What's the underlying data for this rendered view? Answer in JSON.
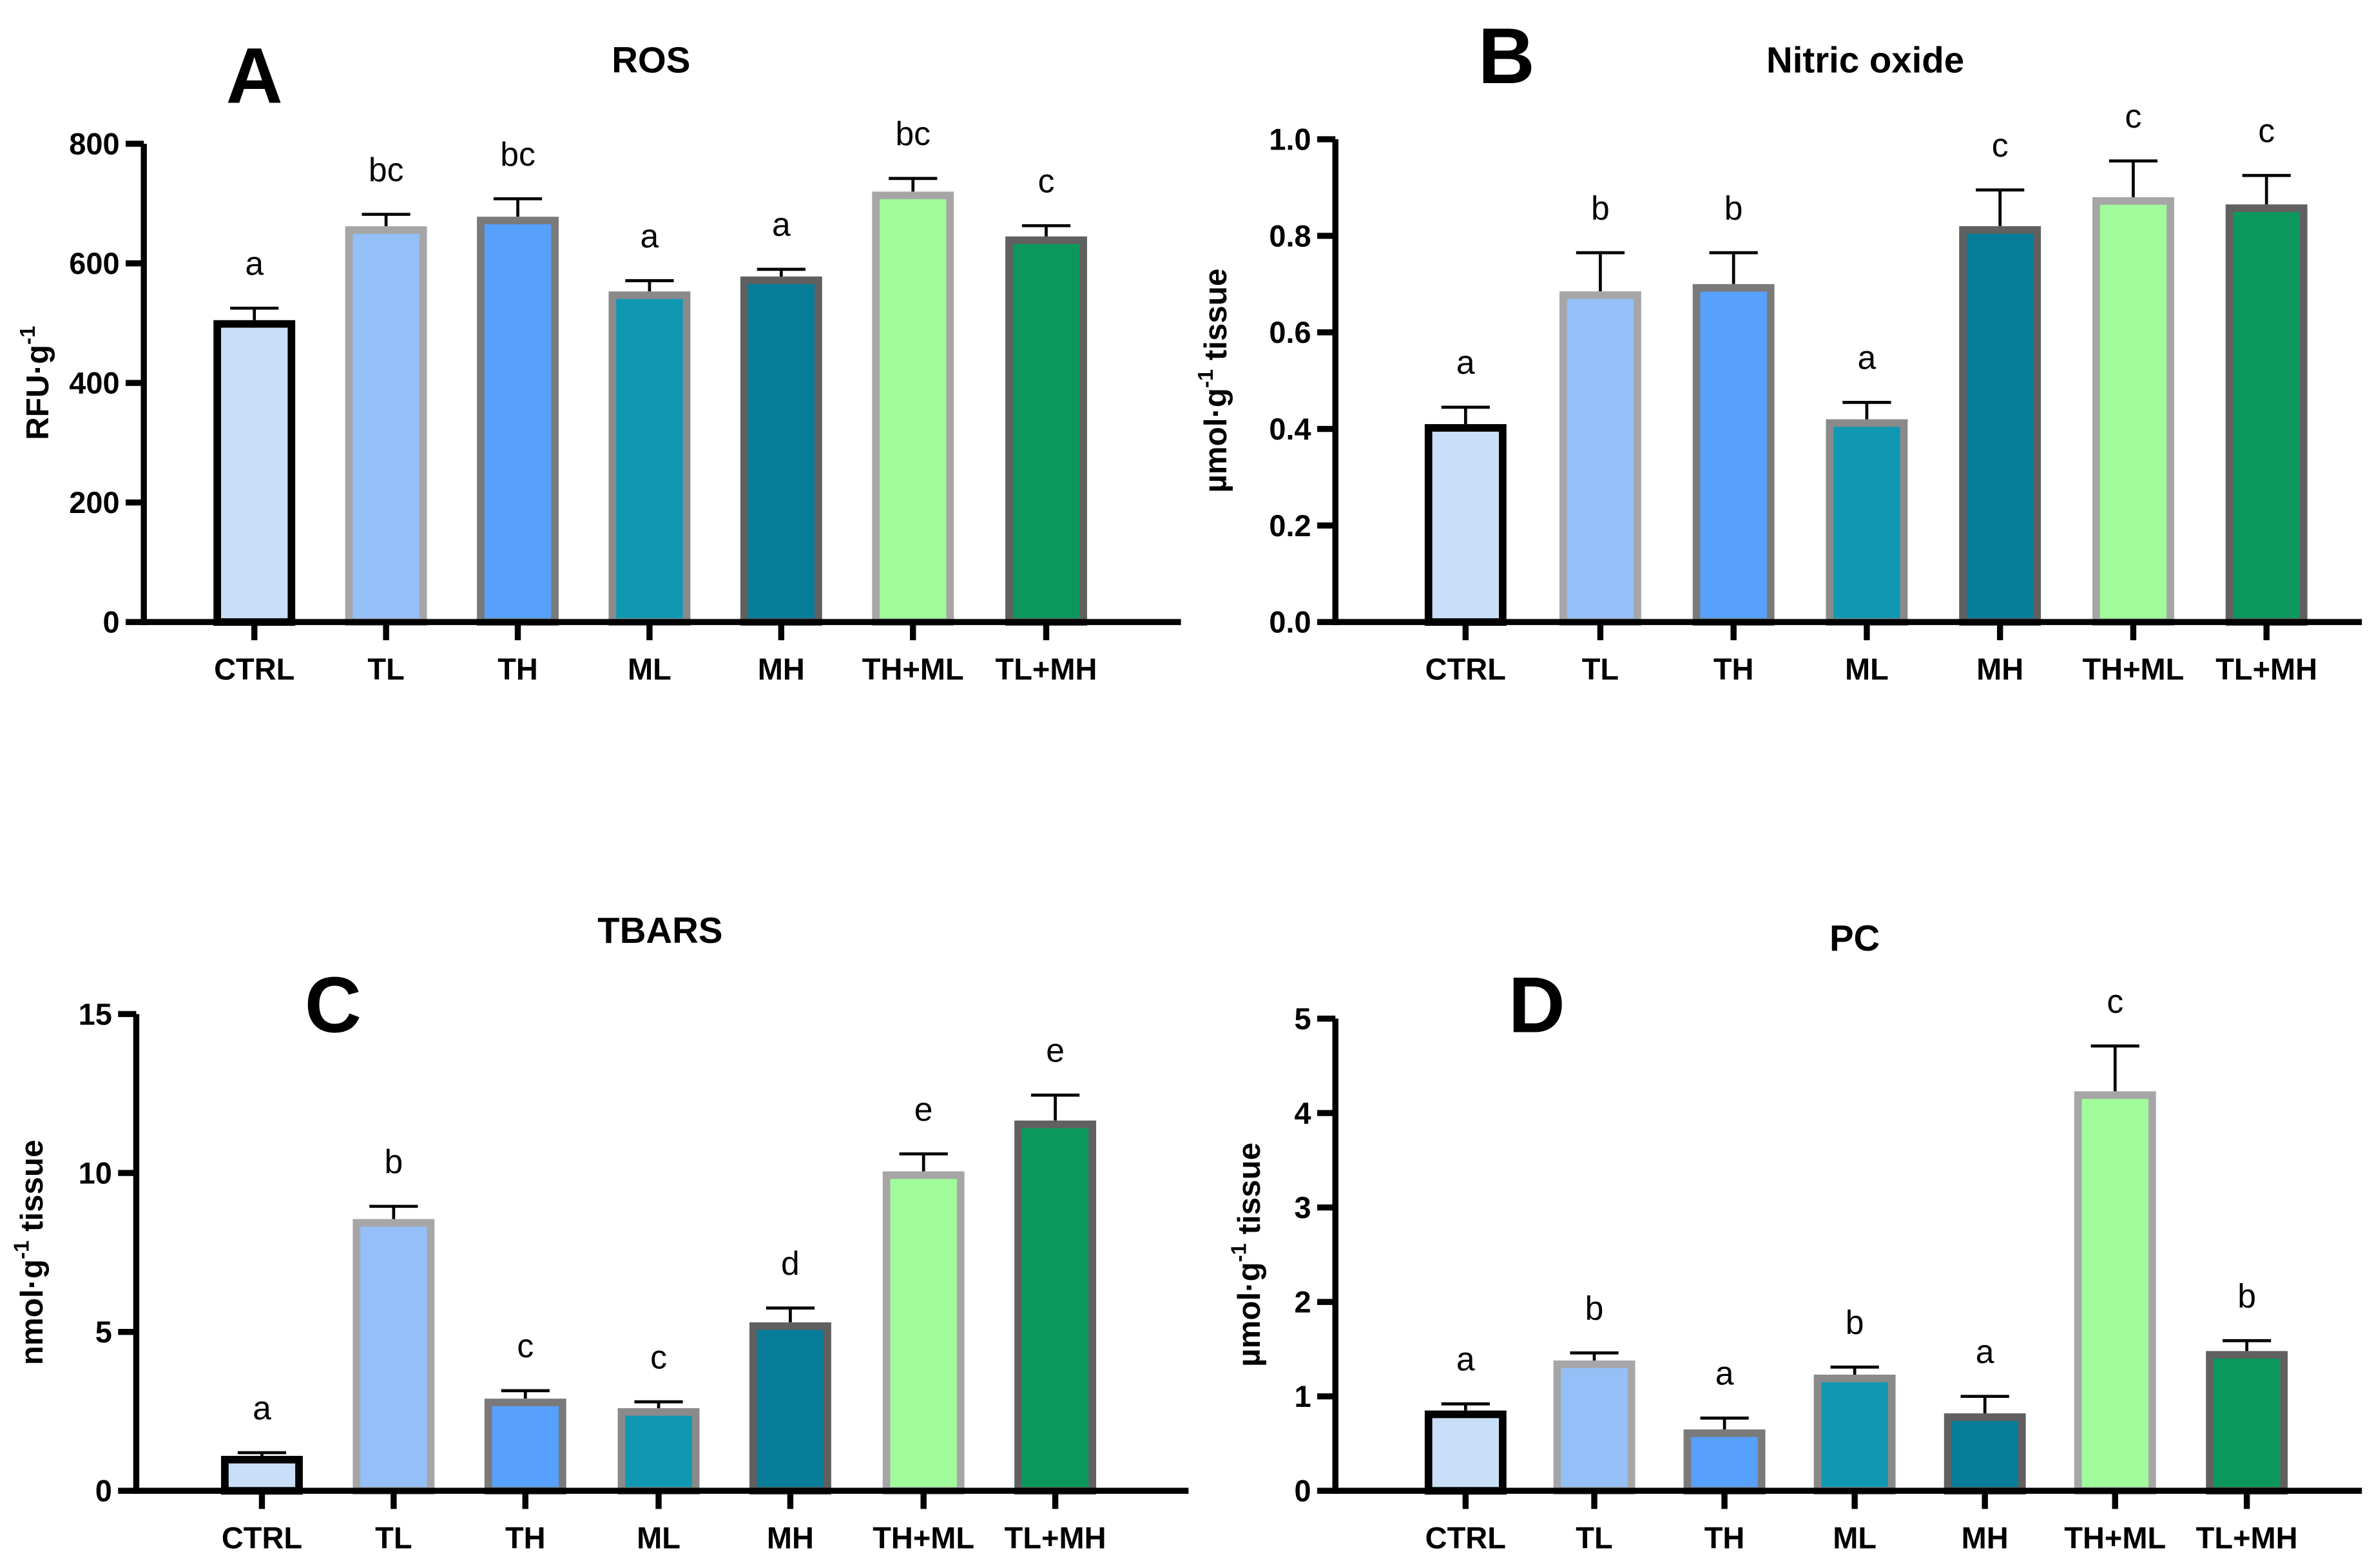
{
  "chart_data": [
    {
      "type": "bar",
      "panel": "A",
      "title": "ROS",
      "ylabel": {
        "pre": "RFU·g",
        "sup": "-1",
        "post": ""
      },
      "ylim": [
        0,
        800
      ],
      "yticks": [
        "0",
        "200",
        "400",
        "600",
        "800"
      ],
      "ytick_values": [
        0,
        200,
        400,
        600,
        800
      ],
      "categories": [
        "CTRL",
        "TL",
        "TH",
        "ML",
        "MH",
        "TH+ML",
        "TL+MH"
      ],
      "values": [
        505,
        662,
        678,
        553,
        578,
        720,
        645
      ],
      "errors": [
        20,
        20,
        30,
        18,
        12,
        22,
        18
      ],
      "letters": [
        "a",
        "bc",
        "bc",
        "a",
        "a",
        "bc",
        "c"
      ]
    },
    {
      "type": "bar",
      "panel": "B",
      "title": "Nitric oxide",
      "ylabel": {
        "pre": "µmol·g",
        "sup": "-1",
        "post": " tissue"
      },
      "ylim": [
        0,
        1.0
      ],
      "yticks": [
        "0.0",
        "0.2",
        "0.4",
        "0.6",
        "0.8",
        "1.0"
      ],
      "ytick_values": [
        0,
        0.2,
        0.4,
        0.6,
        0.8,
        1.0
      ],
      "categories": [
        "CTRL",
        "TL",
        "TH",
        "ML",
        "MH",
        "TH+ML",
        "TL+MH"
      ],
      "values": [
        0.41,
        0.685,
        0.7,
        0.42,
        0.82,
        0.88,
        0.865
      ],
      "errors": [
        0.035,
        0.08,
        0.065,
        0.035,
        0.075,
        0.075,
        0.06
      ],
      "letters": [
        "a",
        "b",
        "b",
        "a",
        "c",
        "c",
        "c"
      ]
    },
    {
      "type": "bar",
      "panel": "C",
      "title": "TBARS",
      "ylabel": {
        "pre": "nmol·g",
        "sup": "-1",
        "post": " tissue"
      },
      "ylim": [
        0,
        15
      ],
      "yticks": [
        "0",
        "5",
        "10",
        "15"
      ],
      "ytick_values": [
        0,
        5,
        10,
        15
      ],
      "categories": [
        "CTRL",
        "TL",
        "TH",
        "ML",
        "MH",
        "TH+ML",
        "TL+MH"
      ],
      "values": [
        1.1,
        8.55,
        2.9,
        2.6,
        5.3,
        10.05,
        11.65
      ],
      "errors": [
        0.1,
        0.4,
        0.25,
        0.2,
        0.45,
        0.55,
        0.8
      ],
      "letters": [
        "a",
        "b",
        "c",
        "c",
        "d",
        "e",
        "e"
      ]
    },
    {
      "type": "bar",
      "panel": "D",
      "title": "PC",
      "ylabel": {
        "pre": "µmol·g",
        "sup": "-1",
        "post": " tissue"
      },
      "ylim": [
        0,
        5
      ],
      "yticks": [
        "0",
        "1",
        "2",
        "3",
        "4",
        "5"
      ],
      "ytick_values": [
        0,
        1,
        2,
        3,
        4,
        5
      ],
      "categories": [
        "CTRL",
        "TL",
        "TH",
        "ML",
        "MH",
        "TH+ML",
        "TL+MH"
      ],
      "values": [
        0.85,
        1.38,
        0.65,
        1.23,
        0.82,
        4.23,
        1.48
      ],
      "errors": [
        0.07,
        0.08,
        0.12,
        0.08,
        0.18,
        0.48,
        0.11
      ],
      "letters": [
        "a",
        "b",
        "a",
        "b",
        "a",
        "c",
        "b"
      ]
    }
  ],
  "colors": {
    "fills": [
      "#c9dff7",
      "#94c0f7",
      "#57a0fc",
      "#1098b3",
      "#087d99",
      "#a0fc9a",
      "#0c985c"
    ],
    "borders": [
      "#000000",
      "#a6a6a8",
      "#7a7a7a",
      "#8a8a8a",
      "#606060",
      "#a6a6a6",
      "#606060"
    ]
  }
}
